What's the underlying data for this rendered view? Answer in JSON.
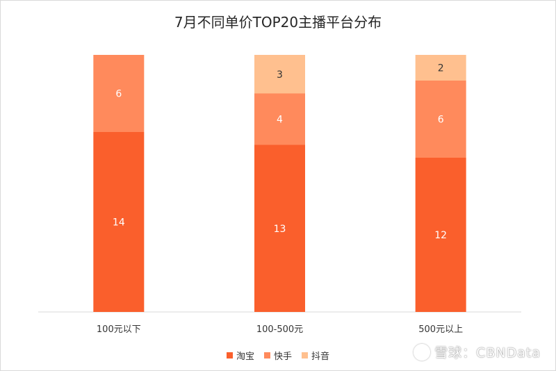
{
  "chart_data": {
    "type": "bar",
    "stacked": true,
    "title": "7月不同单价TOP20主播平台分布",
    "categories": [
      "100元以下",
      "100-500元",
      "500元以上"
    ],
    "series": [
      {
        "name": "淘宝",
        "values": [
          14,
          13,
          12
        ],
        "color": "#FA5F2C"
      },
      {
        "name": "快手",
        "values": [
          6,
          4,
          6
        ],
        "color": "#FF8A5C"
      },
      {
        "name": "抖音",
        "values": [
          0,
          3,
          2
        ],
        "color": "#FFC08F"
      }
    ],
    "ylim": [
      0,
      20
    ],
    "grid": false,
    "legend_position": "bottom",
    "label_colors": {
      "淘宝": "#ffffff",
      "快手": "#ffffff",
      "抖音": "#333333"
    }
  },
  "watermark": {
    "text": "雪球：CBNData"
  }
}
